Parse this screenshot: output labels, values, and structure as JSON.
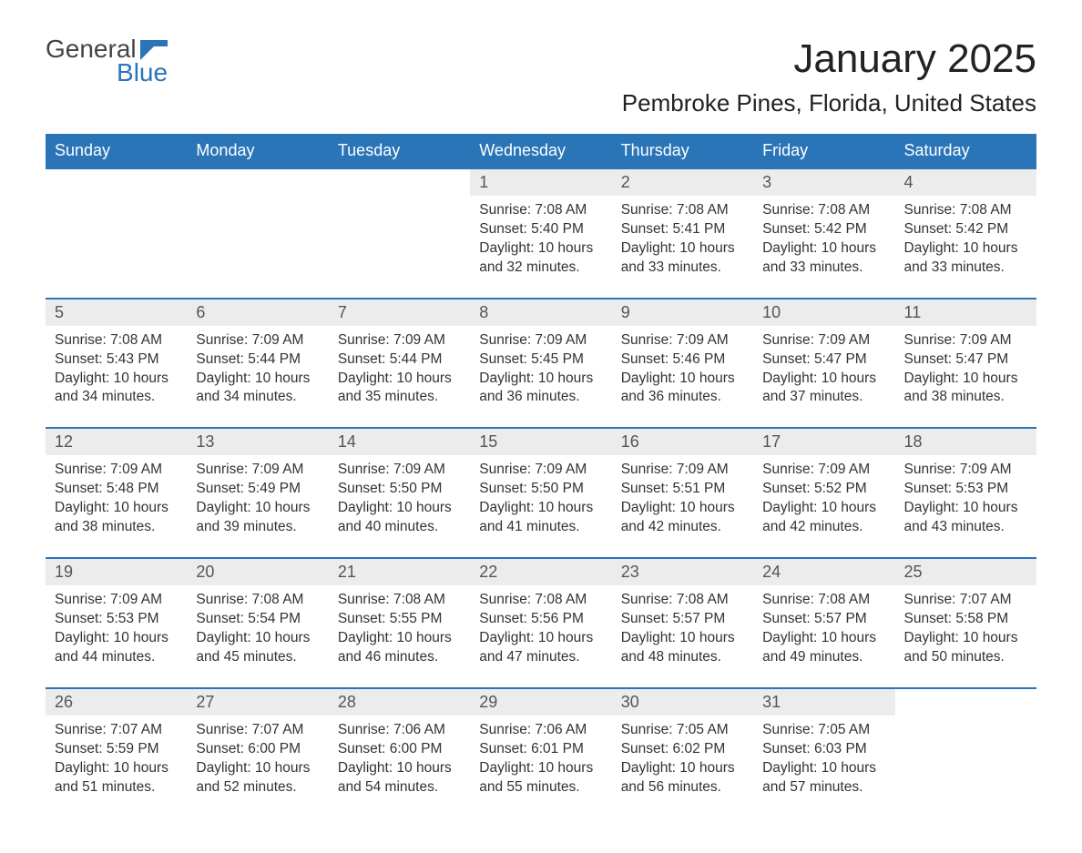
{
  "logo": {
    "general": "General",
    "blue": "Blue",
    "mark_color": "#2a74b8"
  },
  "title": "January 2025",
  "location": "Pembroke Pines, Florida, United States",
  "colors": {
    "header_bg": "#2a74b8",
    "header_text": "#ffffff",
    "daynum_bg": "#ececec",
    "border": "#2a74b8",
    "body_text": "#333333"
  },
  "typography": {
    "title_fontsize": 44,
    "location_fontsize": 26,
    "header_fontsize": 18,
    "daynum_fontsize": 18,
    "cell_fontsize": 15.5
  },
  "day_headers": [
    "Sunday",
    "Monday",
    "Tuesday",
    "Wednesday",
    "Thursday",
    "Friday",
    "Saturday"
  ],
  "weeks": [
    [
      null,
      null,
      null,
      {
        "n": "1",
        "sunrise": "Sunrise: 7:08 AM",
        "sunset": "Sunset: 5:40 PM",
        "daylight": "Daylight: 10 hours and 32 minutes."
      },
      {
        "n": "2",
        "sunrise": "Sunrise: 7:08 AM",
        "sunset": "Sunset: 5:41 PM",
        "daylight": "Daylight: 10 hours and 33 minutes."
      },
      {
        "n": "3",
        "sunrise": "Sunrise: 7:08 AM",
        "sunset": "Sunset: 5:42 PM",
        "daylight": "Daylight: 10 hours and 33 minutes."
      },
      {
        "n": "4",
        "sunrise": "Sunrise: 7:08 AM",
        "sunset": "Sunset: 5:42 PM",
        "daylight": "Daylight: 10 hours and 33 minutes."
      }
    ],
    [
      {
        "n": "5",
        "sunrise": "Sunrise: 7:08 AM",
        "sunset": "Sunset: 5:43 PM",
        "daylight": "Daylight: 10 hours and 34 minutes."
      },
      {
        "n": "6",
        "sunrise": "Sunrise: 7:09 AM",
        "sunset": "Sunset: 5:44 PM",
        "daylight": "Daylight: 10 hours and 34 minutes."
      },
      {
        "n": "7",
        "sunrise": "Sunrise: 7:09 AM",
        "sunset": "Sunset: 5:44 PM",
        "daylight": "Daylight: 10 hours and 35 minutes."
      },
      {
        "n": "8",
        "sunrise": "Sunrise: 7:09 AM",
        "sunset": "Sunset: 5:45 PM",
        "daylight": "Daylight: 10 hours and 36 minutes."
      },
      {
        "n": "9",
        "sunrise": "Sunrise: 7:09 AM",
        "sunset": "Sunset: 5:46 PM",
        "daylight": "Daylight: 10 hours and 36 minutes."
      },
      {
        "n": "10",
        "sunrise": "Sunrise: 7:09 AM",
        "sunset": "Sunset: 5:47 PM",
        "daylight": "Daylight: 10 hours and 37 minutes."
      },
      {
        "n": "11",
        "sunrise": "Sunrise: 7:09 AM",
        "sunset": "Sunset: 5:47 PM",
        "daylight": "Daylight: 10 hours and 38 minutes."
      }
    ],
    [
      {
        "n": "12",
        "sunrise": "Sunrise: 7:09 AM",
        "sunset": "Sunset: 5:48 PM",
        "daylight": "Daylight: 10 hours and 38 minutes."
      },
      {
        "n": "13",
        "sunrise": "Sunrise: 7:09 AM",
        "sunset": "Sunset: 5:49 PM",
        "daylight": "Daylight: 10 hours and 39 minutes."
      },
      {
        "n": "14",
        "sunrise": "Sunrise: 7:09 AM",
        "sunset": "Sunset: 5:50 PM",
        "daylight": "Daylight: 10 hours and 40 minutes."
      },
      {
        "n": "15",
        "sunrise": "Sunrise: 7:09 AM",
        "sunset": "Sunset: 5:50 PM",
        "daylight": "Daylight: 10 hours and 41 minutes."
      },
      {
        "n": "16",
        "sunrise": "Sunrise: 7:09 AM",
        "sunset": "Sunset: 5:51 PM",
        "daylight": "Daylight: 10 hours and 42 minutes."
      },
      {
        "n": "17",
        "sunrise": "Sunrise: 7:09 AM",
        "sunset": "Sunset: 5:52 PM",
        "daylight": "Daylight: 10 hours and 42 minutes."
      },
      {
        "n": "18",
        "sunrise": "Sunrise: 7:09 AM",
        "sunset": "Sunset: 5:53 PM",
        "daylight": "Daylight: 10 hours and 43 minutes."
      }
    ],
    [
      {
        "n": "19",
        "sunrise": "Sunrise: 7:09 AM",
        "sunset": "Sunset: 5:53 PM",
        "daylight": "Daylight: 10 hours and 44 minutes."
      },
      {
        "n": "20",
        "sunrise": "Sunrise: 7:08 AM",
        "sunset": "Sunset: 5:54 PM",
        "daylight": "Daylight: 10 hours and 45 minutes."
      },
      {
        "n": "21",
        "sunrise": "Sunrise: 7:08 AM",
        "sunset": "Sunset: 5:55 PM",
        "daylight": "Daylight: 10 hours and 46 minutes."
      },
      {
        "n": "22",
        "sunrise": "Sunrise: 7:08 AM",
        "sunset": "Sunset: 5:56 PM",
        "daylight": "Daylight: 10 hours and 47 minutes."
      },
      {
        "n": "23",
        "sunrise": "Sunrise: 7:08 AM",
        "sunset": "Sunset: 5:57 PM",
        "daylight": "Daylight: 10 hours and 48 minutes."
      },
      {
        "n": "24",
        "sunrise": "Sunrise: 7:08 AM",
        "sunset": "Sunset: 5:57 PM",
        "daylight": "Daylight: 10 hours and 49 minutes."
      },
      {
        "n": "25",
        "sunrise": "Sunrise: 7:07 AM",
        "sunset": "Sunset: 5:58 PM",
        "daylight": "Daylight: 10 hours and 50 minutes."
      }
    ],
    [
      {
        "n": "26",
        "sunrise": "Sunrise: 7:07 AM",
        "sunset": "Sunset: 5:59 PM",
        "daylight": "Daylight: 10 hours and 51 minutes."
      },
      {
        "n": "27",
        "sunrise": "Sunrise: 7:07 AM",
        "sunset": "Sunset: 6:00 PM",
        "daylight": "Daylight: 10 hours and 52 minutes."
      },
      {
        "n": "28",
        "sunrise": "Sunrise: 7:06 AM",
        "sunset": "Sunset: 6:00 PM",
        "daylight": "Daylight: 10 hours and 54 minutes."
      },
      {
        "n": "29",
        "sunrise": "Sunrise: 7:06 AM",
        "sunset": "Sunset: 6:01 PM",
        "daylight": "Daylight: 10 hours and 55 minutes."
      },
      {
        "n": "30",
        "sunrise": "Sunrise: 7:05 AM",
        "sunset": "Sunset: 6:02 PM",
        "daylight": "Daylight: 10 hours and 56 minutes."
      },
      {
        "n": "31",
        "sunrise": "Sunrise: 7:05 AM",
        "sunset": "Sunset: 6:03 PM",
        "daylight": "Daylight: 10 hours and 57 minutes."
      },
      null
    ]
  ]
}
